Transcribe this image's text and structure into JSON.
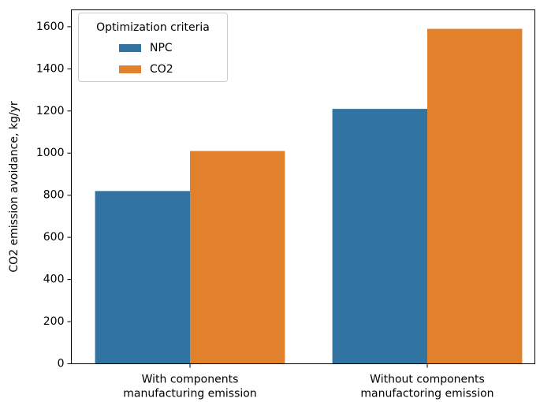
{
  "chart_data": {
    "type": "bar",
    "ylabel": "CO2 emission avoidance, kg/yr",
    "categories": [
      [
        "With components",
        "manufacturing emission"
      ],
      [
        "Without components",
        "manufactoring emission"
      ]
    ],
    "series": [
      {
        "name": "NPC",
        "color": "#3274a1",
        "values": [
          820,
          1210
        ]
      },
      {
        "name": "CO2",
        "color": "#e1812c",
        "values": [
          1010,
          1590
        ]
      }
    ],
    "legend_title": "Optimization criteria",
    "legend": "upper left",
    "ylim": [
      0,
      1680
    ],
    "yticks": [
      0,
      200,
      400,
      600,
      800,
      1000,
      1200,
      1400,
      1600
    ]
  }
}
